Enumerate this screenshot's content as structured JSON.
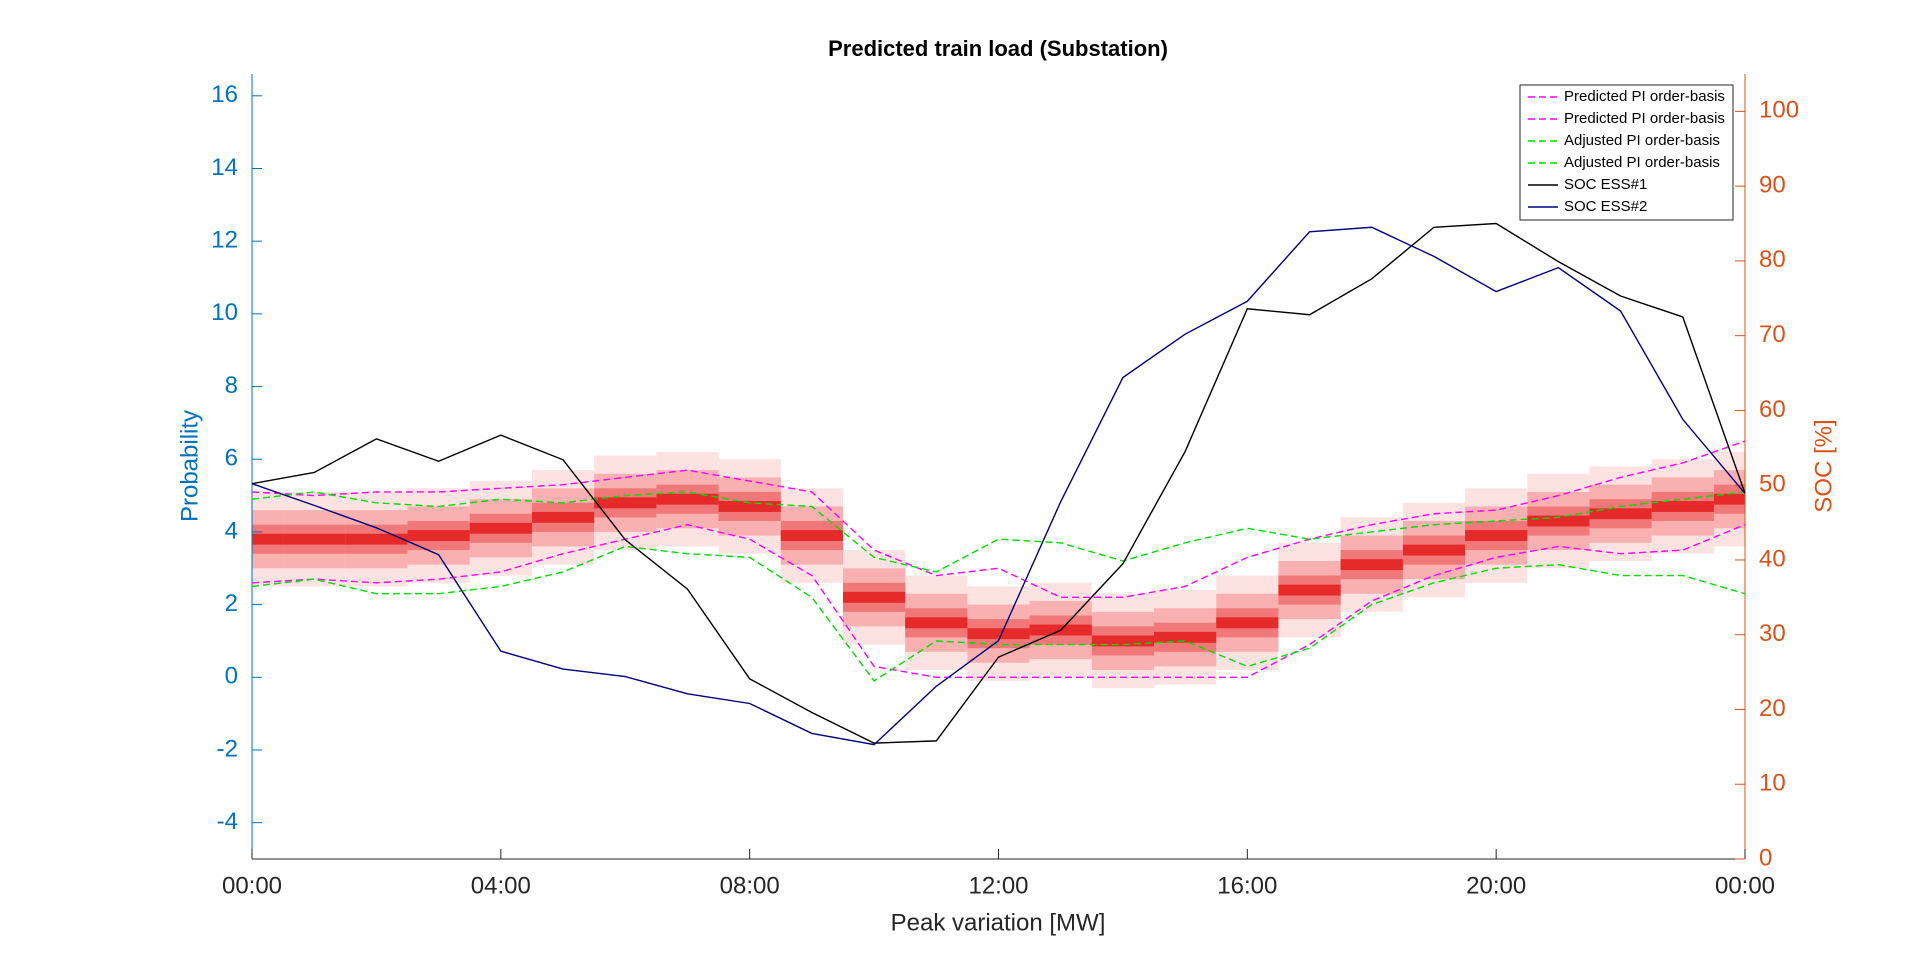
{
  "chart_data": {
    "type": "line",
    "title": "Predicted train load (Substation)",
    "xlabel": "Peak variation [MW]",
    "ylabel": "Probability",
    "y2label": "SOC [%]",
    "x": [
      0,
      1,
      2,
      3,
      4,
      5,
      6,
      7,
      8,
      9,
      10,
      11,
      12,
      13,
      14,
      15,
      16,
      17,
      18,
      19,
      20,
      21,
      22,
      23,
      24
    ],
    "xlim": [
      0,
      24
    ],
    "xticks": [
      {
        "value": 0,
        "label": "00:00"
      },
      {
        "value": 4,
        "label": "04:00"
      },
      {
        "value": 8,
        "label": "08:00"
      },
      {
        "value": 12,
        "label": "12:00"
      },
      {
        "value": 16,
        "label": "16:00"
      },
      {
        "value": 20,
        "label": "20:00"
      },
      {
        "value": 24,
        "label": "00:00"
      }
    ],
    "ylim": [
      -5,
      16.6
    ],
    "yticks": [
      -4,
      -2,
      0,
      2,
      4,
      6,
      8,
      10,
      12,
      14,
      16
    ],
    "y2lim": [
      0,
      105
    ],
    "y2ticks": [
      0,
      10,
      20,
      30,
      40,
      50,
      60,
      70,
      80,
      90,
      100
    ],
    "density_center": [
      3.8,
      3.8,
      3.8,
      3.9,
      4.1,
      4.4,
      4.8,
      4.9,
      4.7,
      3.9,
      2.2,
      1.5,
      1.2,
      1.3,
      1.0,
      1.1,
      1.5,
      2.4,
      3.1,
      3.5,
      3.9,
      4.3,
      4.5,
      4.7,
      4.9
    ],
    "series": [
      {
        "name": "Predicted PI order-basis",
        "color": "#ff00ff",
        "dashed": true,
        "values": [
          5.1,
          5.0,
          5.1,
          5.1,
          5.2,
          5.3,
          5.5,
          5.7,
          5.4,
          5.1,
          3.5,
          2.8,
          3.0,
          2.2,
          2.2,
          2.5,
          3.3,
          3.8,
          4.2,
          4.5,
          4.6,
          5.0,
          5.5,
          5.9,
          6.5
        ]
      },
      {
        "name": "Predicted PI order-basis",
        "color": "#ff00ff",
        "dashed": true,
        "values": [
          2.6,
          2.7,
          2.6,
          2.7,
          2.9,
          3.4,
          3.8,
          4.2,
          3.8,
          2.8,
          0.3,
          0.0,
          0.0,
          0.0,
          0.0,
          0.0,
          0.0,
          0.9,
          2.1,
          2.8,
          3.3,
          3.6,
          3.4,
          3.5,
          4.2
        ]
      },
      {
        "name": "Adjusted PI order-basis",
        "color": "#00dd00",
        "dashed": true,
        "values": [
          4.9,
          5.1,
          4.8,
          4.7,
          4.9,
          4.8,
          5.0,
          5.1,
          4.8,
          4.7,
          3.3,
          2.9,
          3.8,
          3.7,
          3.2,
          3.7,
          4.1,
          3.8,
          4.0,
          4.2,
          4.3,
          4.4,
          4.7,
          4.9,
          5.1
        ]
      },
      {
        "name": "Adjusted PI order-basis",
        "color": "#00dd00",
        "dashed": true,
        "values": [
          2.5,
          2.7,
          2.3,
          2.3,
          2.5,
          2.9,
          3.6,
          3.4,
          3.3,
          2.2,
          -0.1,
          1.0,
          0.9,
          0.9,
          0.9,
          1.0,
          0.3,
          0.8,
          2.0,
          2.6,
          3.0,
          3.1,
          2.8,
          2.8,
          2.3
        ]
      },
      {
        "name": "SOC ESS#1",
        "color": "#000000",
        "axis": "y2",
        "values": [
          50.2,
          51.7,
          56.2,
          53.2,
          56.7,
          53.4,
          42.7,
          36.1,
          24.1,
          19.6,
          15.5,
          15.8,
          27.0,
          30.6,
          39.5,
          54.5,
          73.6,
          72.8,
          77.6,
          84.5,
          85.0,
          79.9,
          75.3,
          72.5,
          48.9
        ]
      },
      {
        "name": "SOC ESS#2",
        "color": "#000080",
        "axis": "y2",
        "values": [
          50.2,
          47.3,
          44.3,
          40.7,
          27.8,
          25.4,
          24.4,
          22.1,
          20.8,
          16.8,
          15.3,
          23.1,
          29.2,
          47.8,
          64.4,
          70.2,
          74.6,
          83.9,
          84.5,
          80.6,
          75.9,
          79.1,
          73.3,
          58.8,
          48.9
        ]
      }
    ]
  }
}
